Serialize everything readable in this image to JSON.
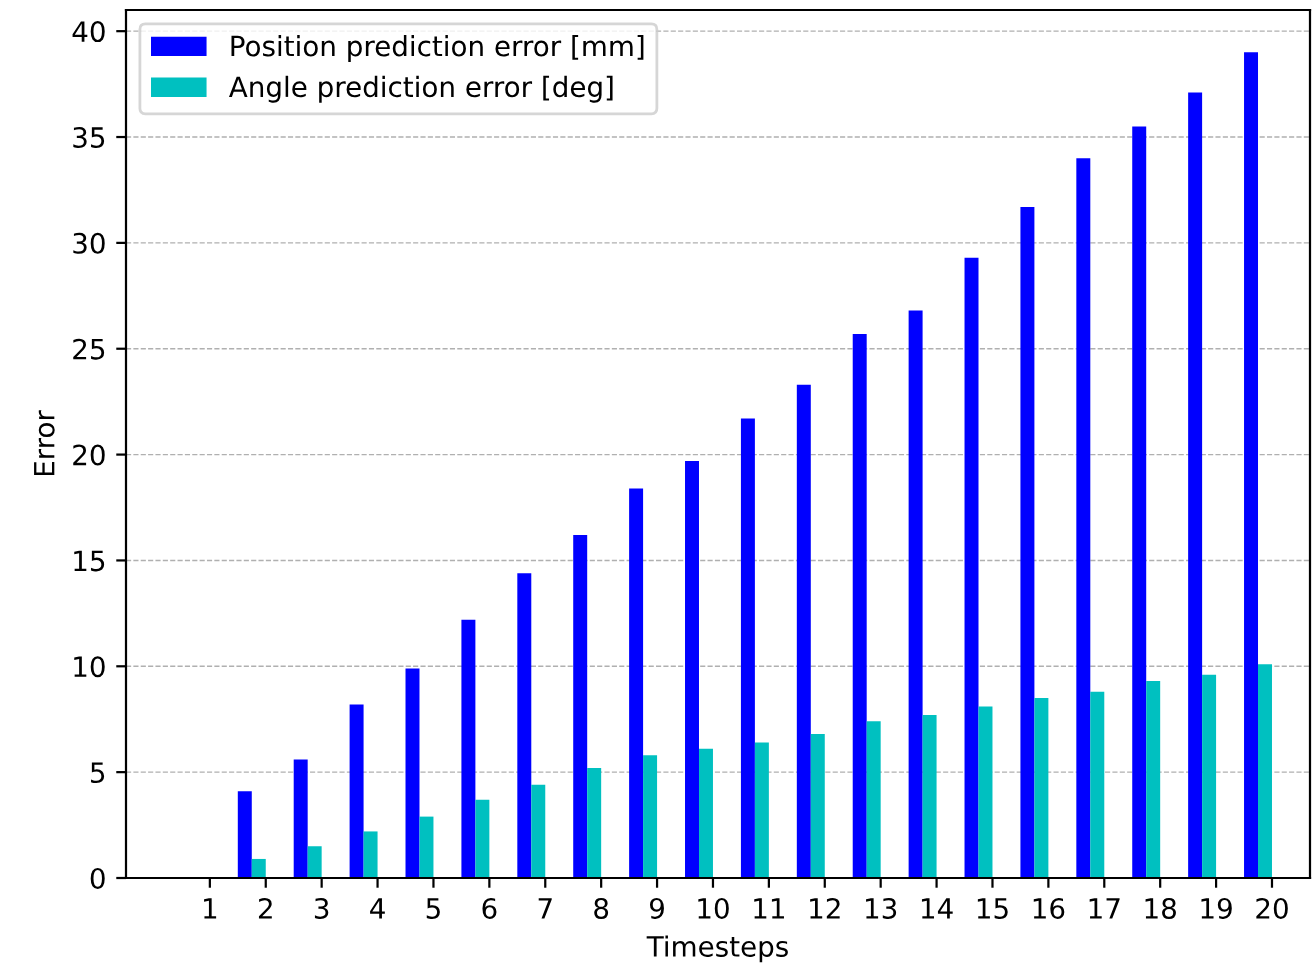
{
  "chart_data": {
    "type": "bar",
    "xlabel": "Timesteps",
    "ylabel": "Error",
    "categories": [
      "1",
      "2",
      "3",
      "4",
      "5",
      "6",
      "7",
      "8",
      "9",
      "10",
      "11",
      "12",
      "13",
      "14",
      "15",
      "16",
      "17",
      "18",
      "19",
      "20"
    ],
    "series": [
      {
        "name": "Position prediction error [mm]",
        "color": "#0000ff",
        "values": [
          0,
          4.1,
          5.6,
          8.2,
          9.9,
          12.2,
          14.4,
          16.2,
          18.4,
          19.7,
          21.7,
          23.3,
          25.7,
          26.8,
          29.3,
          31.7,
          34.0,
          35.5,
          37.1,
          39.0
        ]
      },
      {
        "name": "Angle prediction error [deg]",
        "color": "#00c0c0",
        "values": [
          0,
          0.9,
          1.5,
          2.2,
          2.9,
          3.7,
          4.4,
          5.2,
          5.8,
          6.1,
          6.4,
          6.8,
          7.4,
          7.7,
          8.1,
          8.5,
          8.8,
          9.3,
          9.6,
          10.1
        ]
      }
    ],
    "ylim": [
      0,
      41
    ],
    "yticks": [
      0,
      5,
      10,
      15,
      20,
      25,
      30,
      35,
      40
    ],
    "grid": "y",
    "legend": "top left"
  }
}
